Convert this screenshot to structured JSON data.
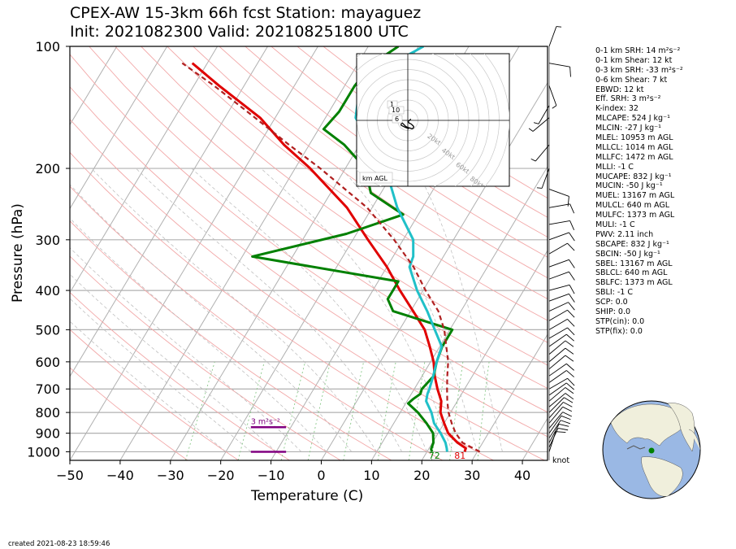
{
  "title_line1": "CPEX-AW 15-3km  66h fcst  Station: mayaguez",
  "title_line2": "Init: 2021082300  Valid: 202108251800 UTC",
  "footer": "created 2021-08-23 18:59:46",
  "chart_data": {
    "type": "line",
    "xlabel": "Temperature (C)",
    "ylabel": "Pressure (hPa)",
    "xlim": [
      -50,
      45
    ],
    "ylim": [
      1050,
      100
    ],
    "y_scale": "log",
    "x_ticks": [
      "−50",
      "−40",
      "−30",
      "−20",
      "−10",
      "0",
      "10",
      "20",
      "30",
      "40"
    ],
    "x_tick_values": [
      -50,
      -40,
      -30,
      -20,
      -10,
      0,
      10,
      20,
      30,
      40
    ],
    "y_ticks": [
      "100",
      "200",
      "300",
      "400",
      "500",
      "600",
      "700",
      "800",
      "900",
      "1000"
    ],
    "y_tick_values": [
      100,
      200,
      300,
      400,
      500,
      600,
      700,
      800,
      900,
      1000
    ],
    "grid": true,
    "series": [
      {
        "key": "temperature",
        "color": "#e00000",
        "points": [
          [
            1000,
            27.5
          ],
          [
            980,
            27.3
          ],
          [
            950,
            25
          ],
          [
            900,
            22
          ],
          [
            850,
            20
          ],
          [
            800,
            18
          ],
          [
            750,
            16.8
          ],
          [
            700,
            14.6
          ],
          [
            650,
            12.5
          ],
          [
            600,
            10.6
          ],
          [
            550,
            8
          ],
          [
            500,
            5
          ],
          [
            450,
            0.5
          ],
          [
            400,
            -4.6
          ],
          [
            350,
            -10
          ],
          [
            300,
            -17
          ],
          [
            250,
            -25
          ],
          [
            200,
            -37
          ],
          [
            175,
            -45
          ],
          [
            150,
            -53
          ],
          [
            125,
            -65
          ],
          [
            110,
            -73
          ]
        ]
      },
      {
        "key": "dewpoint",
        "color": "#008000",
        "points": [
          [
            1000,
            21
          ],
          [
            985,
            20.5
          ],
          [
            950,
            20.2
          ],
          [
            900,
            19
          ],
          [
            850,
            16.5
          ],
          [
            800,
            13.5
          ],
          [
            760,
            10.5
          ],
          [
            740,
            11
          ],
          [
            720,
            11.8
          ],
          [
            700,
            11.5
          ],
          [
            650,
            12.3
          ],
          [
            600,
            11.2
          ],
          [
            550,
            10.5
          ],
          [
            500,
            10.5
          ],
          [
            450,
            -3.5
          ],
          [
            420,
            -6
          ],
          [
            400,
            -6
          ],
          [
            380,
            -6
          ],
          [
            330,
            -38
          ],
          [
            290,
            -22
          ],
          [
            260,
            -13
          ],
          [
            230,
            -22
          ],
          [
            200,
            -26
          ],
          [
            175,
            -33
          ],
          [
            160,
            -39
          ],
          [
            145,
            -38
          ],
          [
            125,
            -38
          ],
          [
            110,
            -37
          ],
          [
            100,
            -34
          ]
        ]
      },
      {
        "key": "wetbulb",
        "color": "#20c0c8",
        "points": [
          [
            1000,
            24
          ],
          [
            980,
            23.5
          ],
          [
            950,
            22.6
          ],
          [
            900,
            20.5
          ],
          [
            850,
            18
          ],
          [
            800,
            16.2
          ],
          [
            750,
            13.8
          ],
          [
            720,
            13.2
          ],
          [
            700,
            13
          ],
          [
            650,
            12.2
          ],
          [
            600,
            11.2
          ],
          [
            550,
            10.4
          ],
          [
            500,
            7
          ],
          [
            450,
            3.3
          ],
          [
            400,
            -1.2
          ],
          [
            350,
            -5.5
          ],
          [
            330,
            -6
          ],
          [
            300,
            -8
          ],
          [
            250,
            -15
          ],
          [
            200,
            -22
          ],
          [
            170,
            -29
          ],
          [
            150,
            -34
          ],
          [
            125,
            -37
          ],
          [
            110,
            -33
          ],
          [
            100,
            -29
          ]
        ]
      },
      {
        "key": "parcel",
        "color": "#b02020",
        "dash": "6,4",
        "points": [
          [
            1000,
            30.5
          ],
          [
            950,
            26
          ],
          [
            900,
            23.5
          ],
          [
            850,
            21.5
          ],
          [
            800,
            19.6
          ],
          [
            750,
            18
          ],
          [
            700,
            16.5
          ],
          [
            650,
            15
          ],
          [
            600,
            13.5
          ],
          [
            550,
            11.3
          ],
          [
            500,
            8.9
          ],
          [
            450,
            5.5
          ],
          [
            400,
            0.5
          ],
          [
            350,
            -4.7
          ],
          [
            300,
            -11.8
          ],
          [
            250,
            -21
          ],
          [
            200,
            -35
          ],
          [
            175,
            -44
          ],
          [
            150,
            -54
          ],
          [
            125,
            -66
          ],
          [
            110,
            -75
          ]
        ]
      }
    ],
    "surface_labels": [
      {
        "text": "72",
        "x": 22.5,
        "color": "#008000"
      },
      {
        "text": "81",
        "x": 27.6,
        "color": "#e00000"
      }
    ],
    "srh_markers": [
      {
        "label": "3 m²s⁻²",
        "p": 870,
        "x1": -14,
        "x2": -7,
        "color": "#800080"
      },
      {
        "label": "",
        "p": 1000,
        "x1": -14,
        "x2": -7,
        "color": "#800080"
      }
    ],
    "wind_units_label": "knot",
    "winds": [
      [
        1000,
        18,
        11
      ],
      [
        975,
        25,
        11
      ],
      [
        950,
        28,
        11
      ],
      [
        925,
        33,
        11
      ],
      [
        900,
        35,
        10
      ],
      [
        875,
        40,
        10
      ],
      [
        850,
        40,
        10
      ],
      [
        825,
        42,
        10
      ],
      [
        800,
        45,
        10
      ],
      [
        775,
        50,
        10
      ],
      [
        750,
        50,
        10
      ],
      [
        725,
        55,
        10
      ],
      [
        700,
        60,
        10
      ],
      [
        675,
        55,
        10
      ],
      [
        650,
        55,
        10
      ],
      [
        625,
        50,
        10
      ],
      [
        600,
        50,
        10
      ],
      [
        575,
        50,
        10
      ],
      [
        550,
        55,
        10
      ],
      [
        525,
        60,
        10
      ],
      [
        500,
        60,
        10
      ],
      [
        475,
        60,
        10
      ],
      [
        450,
        65,
        10
      ],
      [
        425,
        70,
        10
      ],
      [
        400,
        75,
        10
      ],
      [
        375,
        70,
        10
      ],
      [
        350,
        70,
        10
      ],
      [
        325,
        60,
        10
      ],
      [
        300,
        70,
        10
      ],
      [
        275,
        80,
        10
      ],
      [
        250,
        80,
        10
      ],
      [
        225,
        110,
        10
      ],
      [
        200,
        200,
        8
      ],
      [
        175,
        220,
        9
      ],
      [
        150,
        230,
        8
      ],
      [
        140,
        210,
        6
      ],
      [
        125,
        160,
        9
      ],
      [
        110,
        100,
        10
      ],
      [
        100,
        20,
        6
      ]
    ],
    "hodograph": {
      "ring_labels": [
        "20kt",
        "40kt",
        "60kt",
        "80kt"
      ],
      "height_labels": [
        "1",
        "10",
        "6"
      ],
      "legend": "km AGL",
      "points": [
        [
          0.5,
          5.5
        ],
        [
          -1,
          4
        ],
        [
          -2,
          3
        ],
        [
          -1,
          2
        ],
        [
          0,
          1.5
        ],
        [
          1,
          1
        ],
        [
          2,
          0
        ],
        [
          3,
          -1
        ],
        [
          3,
          -2
        ],
        [
          2,
          -3
        ],
        [
          1,
          -3
        ],
        [
          0,
          -2.5
        ],
        [
          -2,
          -2
        ],
        [
          -4,
          -1
        ],
        [
          -5,
          0
        ],
        [
          -6,
          1
        ],
        [
          -7,
          2
        ],
        [
          -8,
          1
        ],
        [
          -8,
          0
        ],
        [
          -6,
          -1
        ],
        [
          -4,
          -2
        ],
        [
          -1,
          -3
        ]
      ]
    },
    "globe_marker": {
      "lat": 18.2,
      "lon": -67.1,
      "color": "#008000"
    }
  },
  "indices": [
    "0-1 km SRH: 14 m²s⁻²",
    "0-1 km Shear: 12 kt",
    "0-3 km SRH: -33 m²s⁻²",
    "0-6 km Shear: 7 kt",
    "EBWD: 12 kt",
    "Eff. SRH: 3 m²s⁻²",
    "K-index: 32",
    "MLCAPE: 524 J kg⁻¹",
    "MLCIN: -27 J kg⁻¹",
    "MLEL: 10953 m AGL",
    "MLLCL: 1014 m AGL",
    "MLLFC: 1472 m AGL",
    "MLLI: -1 C",
    "MUCAPE: 832 J kg⁻¹",
    "MUCIN: -50 J kg⁻¹",
    "MUEL: 13167 m AGL",
    "MULCL: 640 m AGL",
    "MULFC: 1373 m AGL",
    "MULI: -1 C",
    "PWV: 2.11 inch",
    "SBCAPE: 832 J kg⁻¹",
    "SBCIN: -50 J kg⁻¹",
    "SBEL: 13167 m AGL",
    "SBLCL: 640 m AGL",
    "SBLFC: 1373 m AGL",
    "SBLI: -1 C",
    "SCP: 0.0",
    "SHIP: 0.0",
    "STP(cin): 0.0",
    "STP(fix): 0.0"
  ]
}
